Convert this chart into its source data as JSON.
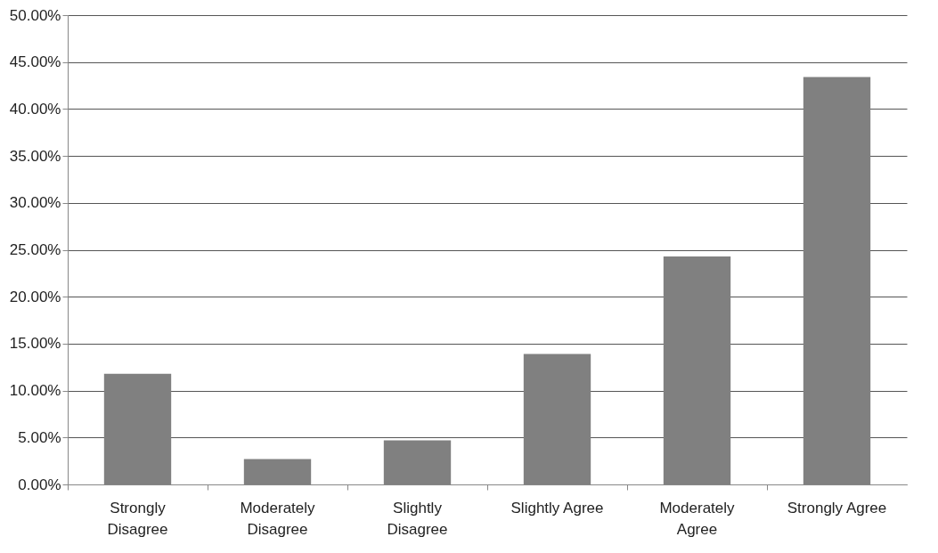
{
  "chart_data": {
    "type": "bar",
    "categories": [
      "Strongly Disagree",
      "Moderately Disagree",
      "Slightly Disagree",
      "Slightly Agree",
      "Moderately Agree",
      "Strongly Agree"
    ],
    "values": [
      11.8,
      2.7,
      4.7,
      13.9,
      24.3,
      43.4
    ],
    "color": "#808080",
    "ylim": [
      0,
      50
    ],
    "yticks": [
      {
        "value": 0,
        "label": "0.00%"
      },
      {
        "value": 5,
        "label": "5.00%"
      },
      {
        "value": 10,
        "label": "10.00%"
      },
      {
        "value": 15,
        "label": "15.00%"
      },
      {
        "value": 20,
        "label": "20.00%"
      },
      {
        "value": 25,
        "label": "25.00%"
      },
      {
        "value": 30,
        "label": "30.00%"
      },
      {
        "value": 35,
        "label": "35.00%"
      },
      {
        "value": 40,
        "label": "40.00%"
      },
      {
        "value": 45,
        "label": "45.00%"
      },
      {
        "value": 50,
        "label": "50.00%"
      }
    ],
    "grid": "y"
  }
}
